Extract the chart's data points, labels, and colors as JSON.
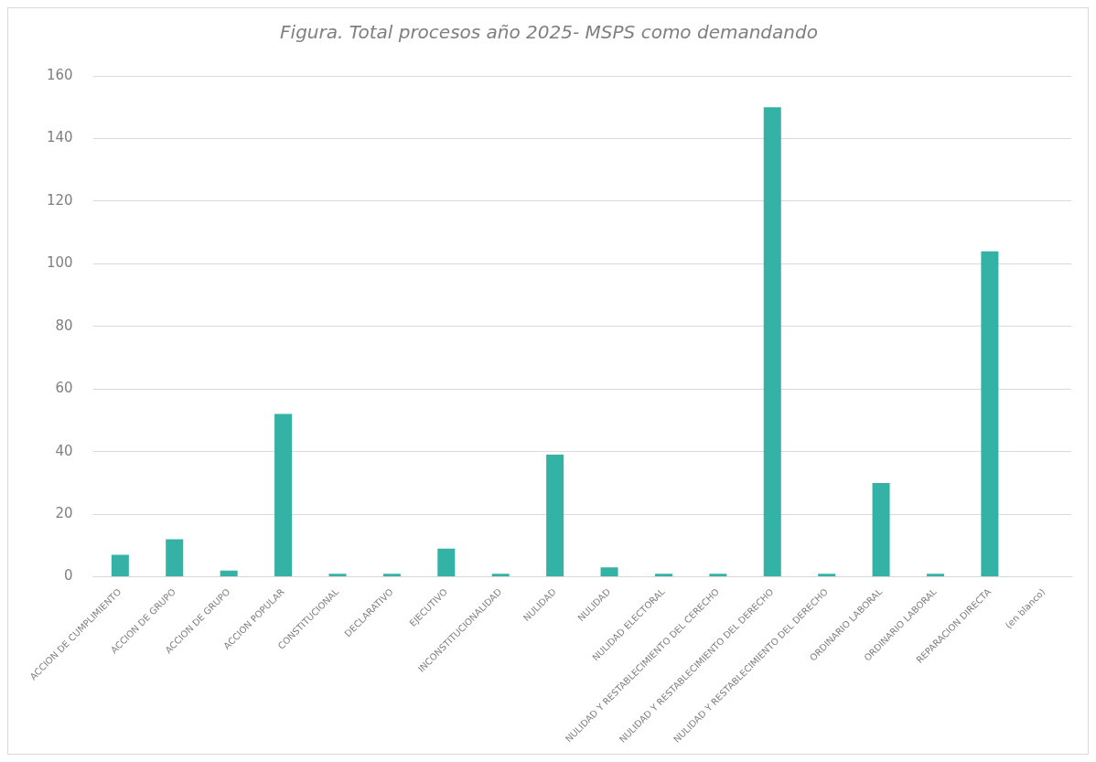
{
  "chart_data": {
    "type": "bar",
    "title": "Figura. Total procesos año 2025- MSPS como demandando",
    "categories": [
      "ACCION DE CUMPLIMIENTO",
      "ACCION DE GRUPO",
      "ACCION DE GRUPO",
      "ACCION POPULAR",
      "CONSTITUCIONAL",
      "DECLARATIVO",
      "EJECUTIVO",
      "INCONSTITUCIONALIDAD",
      "NULIDAD",
      "NULIDAD",
      "NULIDAD ELECTORAL",
      "NULIDAD Y RESTABLECIMIENTO DEL CERECHO",
      "NULIDAD Y RESTABLECIMIENTO DEL DERECHO",
      "NULIDAD Y RESTABLECIMIENTO DEL DERECHO",
      "ORDINARIO LABORAL",
      "ORDINARIO LABORAL",
      "REPARACION DIRECTA",
      "(en blanco)"
    ],
    "values": [
      7,
      12,
      2,
      52,
      1,
      1,
      9,
      1,
      39,
      3,
      1,
      1,
      150,
      1,
      30,
      1,
      104,
      null
    ],
    "color": "#33b2a5",
    "ylim": [
      0,
      160
    ],
    "yticks": [
      0,
      20,
      40,
      60,
      80,
      100,
      120,
      140,
      160
    ],
    "grid": "y"
  }
}
